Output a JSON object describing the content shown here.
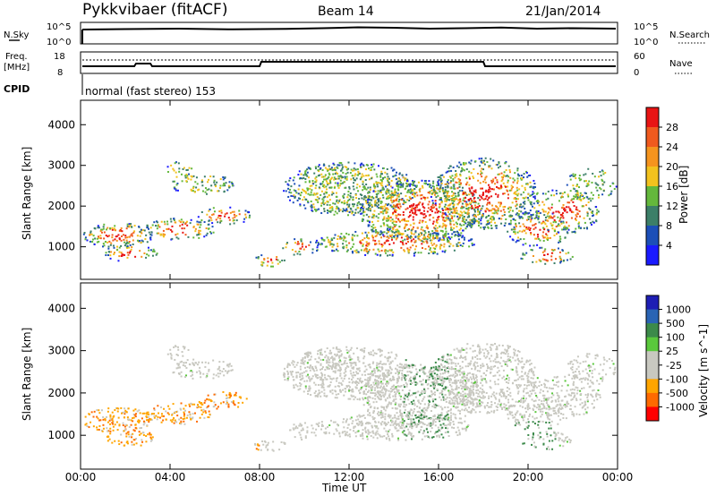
{
  "header": {
    "title": "Pykkvibaer (fitACF)",
    "beam": "Beam 14",
    "date": "21/Jan/2014"
  },
  "noise_panel": {
    "left_label": "N.Sky",
    "left_ticks": [
      "10^5",
      "10^0"
    ],
    "right_label": "N.Search",
    "right_ticks": [
      "10^5",
      "10^0"
    ]
  },
  "freq_panel": {
    "left_label_line1": "Freq.",
    "left_label_line2": "[MHz]",
    "left_ticks": [
      "18",
      "8"
    ],
    "right_label": "Nave",
    "right_ticks": [
      "60",
      "0"
    ],
    "cpid_label": "CPID",
    "cpid_text": "normal (fast stereo) 153"
  },
  "colors": {
    "power_scale": [
      "#1a1aff",
      "#1c4fb8",
      "#3c7f68",
      "#64b83c",
      "#f2c21e",
      "#f5941e",
      "#f05a1e",
      "#e81414"
    ],
    "velocity_scale": [
      "#ff0000",
      "#ff6a00",
      "#ffa500",
      "#c8c8c0",
      "#c8c8c0",
      "#5ac83c",
      "#3c8a4a",
      "#2a64b4",
      "#1e1eb4"
    ],
    "velocity_background": "#c8c8c0"
  },
  "chart_data": [
    {
      "type": "heatmap",
      "title": "Power",
      "xlabel": "Time UT",
      "ylabel": "Slant Range [km]",
      "x_ticks": [
        "00:00",
        "04:00",
        "08:00",
        "12:00",
        "16:00",
        "20:00",
        "00:00"
      ],
      "y_ticks": [
        1000,
        2000,
        3000,
        4000
      ],
      "ylim": [
        200,
        4600
      ],
      "colorbar_label": "Power [dB]",
      "colorbar_ticks": [
        "28",
        "24",
        "20",
        "16",
        "12",
        "8",
        "4"
      ],
      "colorbar_range": [
        0,
        32
      ]
    },
    {
      "type": "heatmap",
      "title": "Velocity",
      "xlabel": "Time UT",
      "ylabel": "Slant Range [km]",
      "x_ticks": [
        "00:00",
        "04:00",
        "08:00",
        "12:00",
        "16:00",
        "20:00",
        "00:00"
      ],
      "y_ticks": [
        1000,
        2000,
        3000,
        4000
      ],
      "ylim": [
        200,
        4600
      ],
      "colorbar_label": "Velocity [m s^-1]",
      "colorbar_ticks": [
        "1000",
        "500",
        "100",
        "25",
        "-25",
        "-100",
        "-500",
        "-1000"
      ]
    }
  ]
}
